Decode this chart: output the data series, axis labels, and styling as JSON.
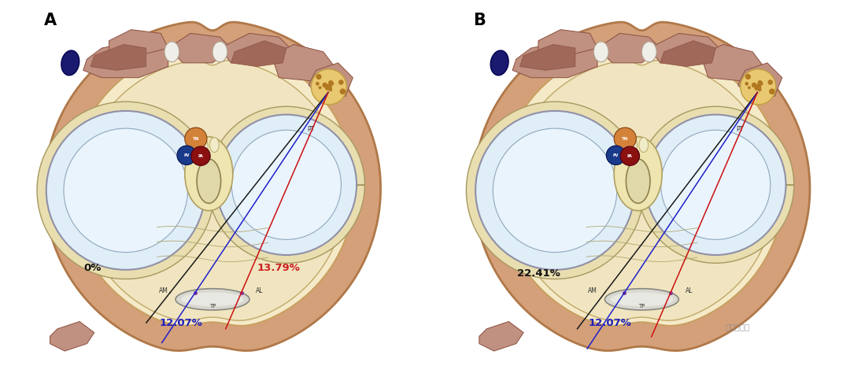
{
  "figure_width": 10.8,
  "figure_height": 4.79,
  "bg_color": "#ffffff",
  "panel_A_label": "A",
  "panel_B_label": "B",
  "outer_skin_color": "#D4A07A",
  "outer_edge_color": "#B07848",
  "inner_cream_color": "#F5EAC8",
  "inner_edge_color": "#C8A060",
  "tissue_cream": "#EEE0A8",
  "muscle_fill": "#C09080",
  "muscle_edge": "#8B5040",
  "muscle_dark": "#A06858",
  "bone_fill": "#D8E8F0",
  "bone_edge": "#9090A0",
  "cartilage_line": "#A8C0D0",
  "meniscus_fill": "#E0D8B8",
  "meniscus_edge": "#A09878",
  "ligament_fill": "#E8DEB8",
  "ligament_edge": "#B0A070",
  "central_fill": "#F0E8C8",
  "nerve_bundle_fill": "#E8C870",
  "nerve_bundle_edge": "#C0A040",
  "blue_oval_fill": "#1a1a6e",
  "tn_fill": "#D4823A",
  "pv_fill": "#1a3a8a",
  "pa_fill": "#8B1010",
  "line_black": "#1a1a1a",
  "line_blue": "#2020CC",
  "line_red": "#CC1010",
  "text_black": "#111111",
  "text_blue": "#2020BB",
  "text_red": "#CC2020",
  "pct_A_0": "0%",
  "pct_A_blue": "12.07%",
  "pct_A_red": "13.79%",
  "pct_B_black": "22.41%",
  "pct_B_blue": "12.07%",
  "lbl_AM": "AM",
  "lbl_TP": "TP",
  "lbl_AL": "AL",
  "lbl_PT": "PT",
  "watermark": "茅永涛博士"
}
